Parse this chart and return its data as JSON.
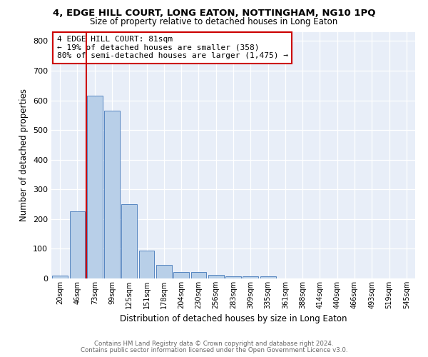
{
  "title": "4, EDGE HILL COURT, LONG EATON, NOTTINGHAM, NG10 1PQ",
  "subtitle": "Size of property relative to detached houses in Long Eaton",
  "xlabel": "Distribution of detached houses by size in Long Eaton",
  "ylabel": "Number of detached properties",
  "bar_color": "#b8cfe8",
  "bar_edge_color": "#5585c0",
  "categories": [
    "20sqm",
    "46sqm",
    "73sqm",
    "99sqm",
    "125sqm",
    "151sqm",
    "178sqm",
    "204sqm",
    "230sqm",
    "256sqm",
    "283sqm",
    "309sqm",
    "335sqm",
    "361sqm",
    "388sqm",
    "414sqm",
    "440sqm",
    "466sqm",
    "493sqm",
    "519sqm",
    "545sqm"
  ],
  "values": [
    10,
    225,
    615,
    565,
    250,
    95,
    45,
    22,
    22,
    12,
    8,
    7,
    8,
    0,
    0,
    0,
    0,
    0,
    0,
    0,
    0
  ],
  "vline_x": 2.0,
  "vline_color": "#cc0000",
  "annotation_text": "4 EDGE HILL COURT: 81sqm\n← 19% of detached houses are smaller (358)\n80% of semi-detached houses are larger (1,475) →",
  "ylim": [
    0,
    830
  ],
  "yticks": [
    0,
    100,
    200,
    300,
    400,
    500,
    600,
    700,
    800
  ],
  "bg_color": "#e8eef8",
  "footer_line1": "Contains HM Land Registry data © Crown copyright and database right 2024.",
  "footer_line2": "Contains public sector information licensed under the Open Government Licence v3.0."
}
